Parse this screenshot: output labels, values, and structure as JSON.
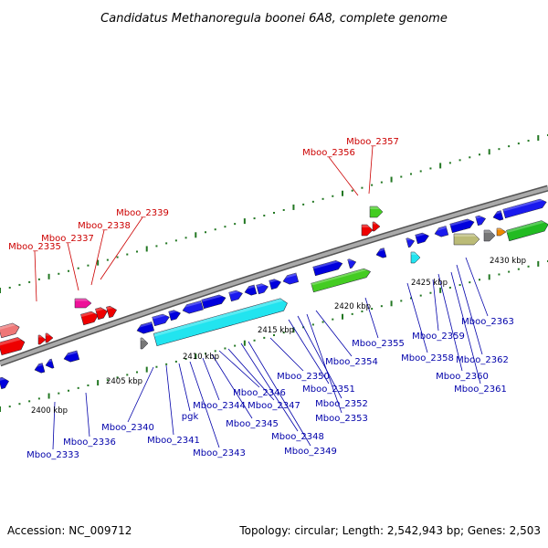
{
  "title": "Candidatus Methanoregula boonei 6A8, complete genome",
  "accession_text": "Accession: NC_009712",
  "summary_text": "Topology: circular; Length: 2,542,943 bp; Genes: 2,503",
  "colors": {
    "forward_gene": "#0000ee",
    "reverse_gene": "#0000ee",
    "highlight_label": "#cc0000",
    "normal_label": "#0000aa",
    "backbone": "#888888",
    "cyan_gene": "#22e4ef",
    "green_gene": "#44cc22",
    "pink_gene": "#ee1199",
    "red_gene": "#ee0000",
    "olive_gene": "#bbbb77",
    "gray_gene": "#777777",
    "tick_green": "#227722"
  },
  "scale_labels": [
    "2400 kbp",
    "2405 kbp",
    "2410 kbp",
    "2415 kbp",
    "2420 kbp",
    "2425 kbp",
    "2430 kbp"
  ],
  "highlighted_genes": [
    "Mboo_2335",
    "Mboo_2337",
    "Mboo_2338",
    "Mboo_2339",
    "Mboo_2356",
    "Mboo_2357"
  ],
  "lower_genes": [
    "Mboo_2333",
    "Mboo_2336",
    "Mboo_2340",
    "Mboo_2341",
    "pgk",
    "Mboo_2343",
    "Mboo_2344",
    "Mboo_2345",
    "Mboo_2346",
    "Mboo_2347",
    "Mboo_2348",
    "Mboo_2349",
    "Mboo_2350",
    "Mboo_2351",
    "Mboo_2352",
    "Mboo_2353",
    "Mboo_2354",
    "Mboo_2355",
    "Mboo_2358",
    "Mboo_2359",
    "Mboo_2360",
    "Mboo_2361",
    "Mboo_2362",
    "Mboo_2363"
  ]
}
